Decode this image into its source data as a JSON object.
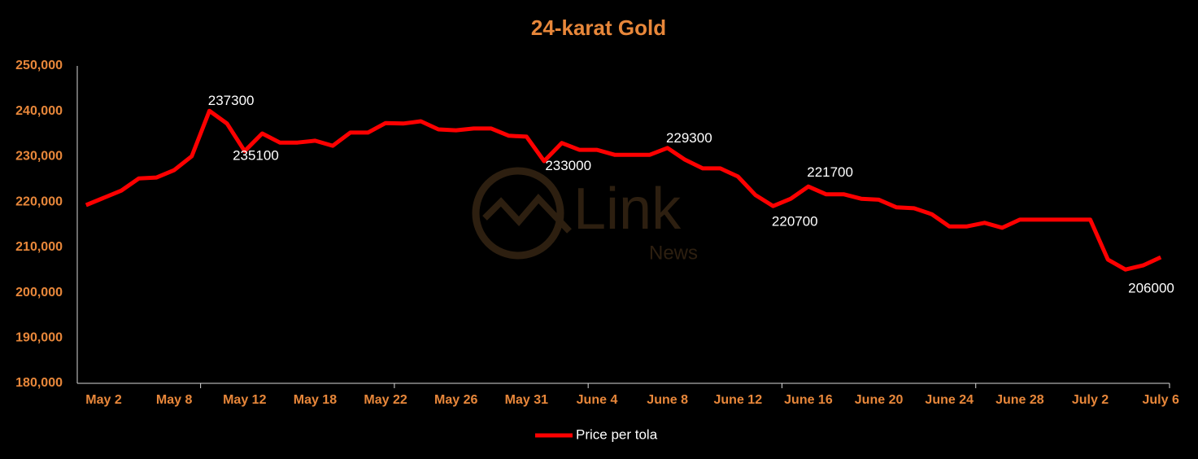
{
  "chart_data": {
    "type": "line",
    "title": "24-karat Gold",
    "watermark": [
      "Link",
      "News"
    ],
    "categories": [
      null,
      "May 2",
      null,
      null,
      null,
      "May 8",
      null,
      null,
      null,
      "May 12",
      null,
      null,
      null,
      "May 18",
      null,
      null,
      null,
      "May 22",
      null,
      null,
      null,
      "May 26",
      null,
      null,
      null,
      "May 31",
      null,
      null,
      null,
      "June 4",
      null,
      null,
      null,
      "June 8",
      null,
      null,
      null,
      "June 12",
      null,
      null,
      null,
      "June 16",
      null,
      null,
      null,
      "June 20",
      null,
      null,
      null,
      "June 24",
      null,
      null,
      null,
      "June 28",
      null,
      null,
      null,
      "July 2",
      null,
      null,
      null,
      "July 6"
    ],
    "series": [
      {
        "name": "Price per tola",
        "color": "#ff0000",
        "values": [
          219300,
          220900,
          222500,
          225200,
          225400,
          227000,
          230100,
          240100,
          237300,
          231200,
          235100,
          233100,
          233100,
          233500,
          232400,
          235300,
          235300,
          237400,
          237300,
          237800,
          236000,
          235800,
          236200,
          236200,
          234600,
          234400,
          229000,
          233000,
          231500,
          231500,
          230400,
          230400,
          230400,
          231900,
          229300,
          227400,
          227400,
          225600,
          221500,
          219100,
          220700,
          223400,
          221700,
          221700,
          220700,
          220500,
          218800,
          218600,
          217300,
          214600,
          214600,
          215400,
          214300,
          216100,
          216100,
          216100,
          216100,
          216100,
          207300,
          205100,
          206000,
          207800
        ],
        "value_labels": [
          null,
          null,
          null,
          null,
          null,
          null,
          null,
          null,
          "237300",
          null,
          "235100",
          null,
          null,
          null,
          null,
          null,
          null,
          null,
          null,
          null,
          null,
          null,
          null,
          null,
          null,
          null,
          null,
          "233000",
          null,
          null,
          null,
          null,
          null,
          null,
          "229300",
          null,
          null,
          null,
          null,
          null,
          "220700",
          null,
          "221700",
          null,
          null,
          null,
          null,
          null,
          null,
          null,
          null,
          null,
          null,
          null,
          null,
          null,
          null,
          null,
          null,
          null,
          "206000",
          null
        ]
      }
    ],
    "ylim": [
      180000,
      250000
    ],
    "yticks": [
      {
        "value": 180000,
        "label": "180,000"
      },
      {
        "value": 190000,
        "label": "190,000"
      },
      {
        "value": 200000,
        "label": "200,000"
      },
      {
        "value": 210000,
        "label": "210,000"
      },
      {
        "value": 220000,
        "label": "220,000"
      },
      {
        "value": 230000,
        "label": "230,000"
      },
      {
        "value": 240000,
        "label": "240,000"
      },
      {
        "value": 250000,
        "label": "250,000"
      }
    ],
    "grid": false,
    "legend": "bottom"
  }
}
